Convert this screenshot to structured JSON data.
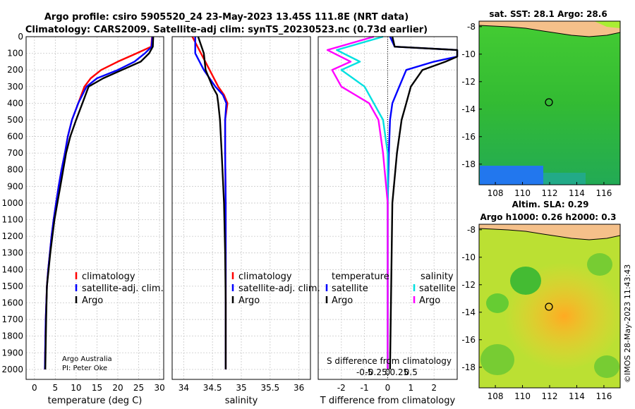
{
  "header": {
    "title_line1": "Argo profile: csiro 5905520_24 23-May-2023 13.45S 111.8E (NRT data)",
    "title_line2": "Climatology: CARS2009. Satellite-adj clim: synTS_20230523.nc (0.73d earlier)"
  },
  "colors": {
    "climatology": "#ff0000",
    "satellite": "#0000ff",
    "argo": "#000000",
    "salinity_sat": "#00e0e0",
    "salinity_argo": "#ff00ff"
  },
  "credit": {
    "line1": "Argo Australia",
    "line2": "PI: Peter Oke",
    "side_stamp": "©IMOS 28-May-2023 11:43:43"
  },
  "chart_data": [
    {
      "type": "line",
      "name": "temperature-profile",
      "xlabel": "temperature (deg C)",
      "xlim": [
        -2,
        31
      ],
      "ylim": [
        2060,
        0
      ],
      "xticks": [
        0,
        5,
        10,
        15,
        20,
        25,
        30
      ],
      "yticks": [
        0,
        100,
        200,
        300,
        400,
        500,
        600,
        700,
        800,
        900,
        1000,
        1100,
        1200,
        1300,
        1400,
        1500,
        1600,
        1700,
        1800,
        1900,
        2000
      ],
      "legend": [
        "climatology",
        "satellite-adj. clim.",
        "Argo"
      ],
      "series": [
        {
          "name": "climatology",
          "color": "#ff0000",
          "x": [
            28.2,
            28.0,
            24.5,
            20.0,
            16.0,
            13.5,
            12.0,
            10.5,
            9.0,
            8.0,
            7.3,
            6.5,
            5.8,
            5.2,
            4.6,
            4.1,
            3.7,
            3.3,
            3.0,
            2.7,
            2.5
          ],
          "y": [
            0,
            60,
            100,
            150,
            200,
            250,
            300,
            400,
            500,
            600,
            700,
            800,
            900,
            1000,
            1100,
            1200,
            1300,
            1400,
            1500,
            1700,
            2000
          ]
        },
        {
          "name": "satellite-adj. clim.",
          "color": "#0000ff",
          "x": [
            28.3,
            28.1,
            26.5,
            24.0,
            20.0,
            15.0,
            12.5,
            10.5,
            9.0,
            8.0,
            7.3,
            6.5,
            5.8,
            5.2,
            4.6,
            4.1,
            3.7,
            3.3,
            3.0,
            2.7,
            2.5
          ],
          "y": [
            0,
            60,
            100,
            150,
            200,
            250,
            300,
            400,
            500,
            600,
            700,
            800,
            900,
            1000,
            1100,
            1200,
            1300,
            1400,
            1500,
            1700,
            2000
          ]
        },
        {
          "name": "Argo",
          "color": "#000000",
          "x": [
            28.5,
            28.4,
            27.5,
            25.5,
            21.0,
            16.5,
            13.0,
            11.5,
            10.0,
            8.6,
            7.6,
            6.9,
            6.2,
            5.5,
            4.8,
            4.3,
            3.8,
            3.4,
            3.0,
            2.8,
            2.6
          ],
          "y": [
            0,
            60,
            100,
            150,
            200,
            250,
            300,
            400,
            500,
            600,
            700,
            800,
            900,
            1000,
            1100,
            1200,
            1300,
            1400,
            1500,
            1700,
            2000
          ]
        }
      ]
    },
    {
      "type": "line",
      "name": "salinity-profile",
      "xlabel": "salinity",
      "xlim": [
        33.8,
        36.2
      ],
      "ylim": [
        2060,
        0
      ],
      "xticks": [
        34,
        34.5,
        35,
        35.5,
        36
      ],
      "xticklabels": [
        "34",
        "34.5",
        "35",
        "35.5",
        "36"
      ],
      "legend": [
        "climatology",
        "satellite-adj. clim.",
        "Argo"
      ],
      "series": [
        {
          "name": "climatology",
          "color": "#ff0000",
          "x": [
            34.15,
            34.3,
            34.45,
            34.6,
            34.7,
            34.76,
            34.72,
            34.72,
            34.73,
            34.73,
            34.73,
            34.73
          ],
          "y": [
            0,
            100,
            200,
            300,
            350,
            400,
            500,
            700,
            1000,
            1300,
            1600,
            2000
          ]
        },
        {
          "name": "satellite-adj. clim.",
          "color": "#0000ff",
          "x": [
            34.2,
            34.2,
            34.35,
            34.55,
            34.68,
            34.74,
            34.72,
            34.72,
            34.73,
            34.73,
            34.73,
            34.73
          ],
          "y": [
            0,
            100,
            200,
            300,
            350,
            400,
            500,
            700,
            1000,
            1300,
            1600,
            2000
          ]
        },
        {
          "name": "Argo",
          "color": "#000000",
          "x": [
            34.25,
            34.35,
            34.38,
            34.5,
            34.58,
            34.6,
            34.63,
            34.66,
            34.7,
            34.72,
            34.73,
            34.73
          ],
          "y": [
            0,
            100,
            200,
            300,
            350,
            400,
            500,
            700,
            1000,
            1300,
            1600,
            2000
          ]
        }
      ]
    },
    {
      "type": "line",
      "name": "difference-profile",
      "xlabel": "T difference from climatology",
      "xlabel_top": "S difference from climatology",
      "xlim": [
        -3,
        3
      ],
      "ylim": [
        2060,
        0
      ],
      "xticks": [
        -2,
        -1,
        0,
        1,
        2
      ],
      "sticks": [
        -0.5,
        -0.25,
        0,
        0.25,
        0.5
      ],
      "sticklabels": [
        "-0.5",
        "-0.25",
        "0",
        "0.25",
        "0.5"
      ],
      "legend_temperature": [
        "temperature",
        "satellite",
        "Argo"
      ],
      "legend_salinity": [
        "salinity",
        "satellite",
        "Argo"
      ],
      "series": [
        {
          "name": "temperature satellite",
          "color": "#0000ff",
          "x": [
            0.1,
            0.3,
            3.0,
            3.0,
            2.0,
            0.8,
            0.5,
            0.2,
            0.1,
            0.05,
            0.0,
            0.0
          ],
          "y": [
            0,
            60,
            80,
            120,
            150,
            200,
            300,
            400,
            500,
            700,
            1000,
            2000
          ]
        },
        {
          "name": "temperature Argo",
          "color": "#000000",
          "x": [
            0.2,
            0.3,
            3.0,
            3.0,
            2.5,
            1.5,
            1.0,
            0.8,
            0.6,
            0.4,
            0.2,
            0.1
          ],
          "y": [
            0,
            60,
            80,
            120,
            150,
            200,
            300,
            400,
            500,
            700,
            1000,
            2000
          ]
        },
        {
          "name": "salinity satellite",
          "color": "#00e0e0",
          "x": [
            -0.1,
            -1.1,
            -0.6,
            -1.0,
            -0.5,
            -0.3,
            -0.1,
            0.0,
            0.0,
            0.0
          ],
          "y": [
            0,
            80,
            150,
            200,
            300,
            400,
            500,
            700,
            1000,
            2000
          ]
        },
        {
          "name": "salinity Argo",
          "color": "#ff00ff",
          "x": [
            -0.3,
            -1.3,
            -0.8,
            -1.2,
            -1.0,
            -0.4,
            -0.2,
            -0.1,
            0.0,
            0.0
          ],
          "y": [
            0,
            80,
            150,
            200,
            300,
            400,
            500,
            700,
            1000,
            2000
          ]
        }
      ]
    },
    {
      "type": "heatmap",
      "name": "sst-map",
      "title": "sat. SST: 28.1 Argo: 28.6",
      "xticks": [
        "108",
        "110",
        "112",
        "114",
        "116"
      ],
      "yticks": [
        "-8",
        "-10",
        "-12",
        "-14",
        "-16",
        "-18"
      ],
      "xlim": [
        106.8,
        117.2
      ],
      "ylim": [
        -19.5,
        -7.6
      ],
      "marker": {
        "lon": 111.8,
        "lat": -13.45
      }
    },
    {
      "type": "heatmap",
      "name": "sla-map",
      "title": "Altim. SLA: 0.29",
      "subtitle": "Argo h1000: 0.26 h2000: 0.3",
      "xticks": [
        "108",
        "110",
        "112",
        "114",
        "116"
      ],
      "yticks": [
        "-8",
        "-10",
        "-12",
        "-14",
        "-16",
        "-18"
      ],
      "xlim": [
        106.8,
        117.2
      ],
      "ylim": [
        -19.5,
        -7.6
      ],
      "marker": {
        "lon": 111.8,
        "lat": -13.45
      }
    }
  ]
}
